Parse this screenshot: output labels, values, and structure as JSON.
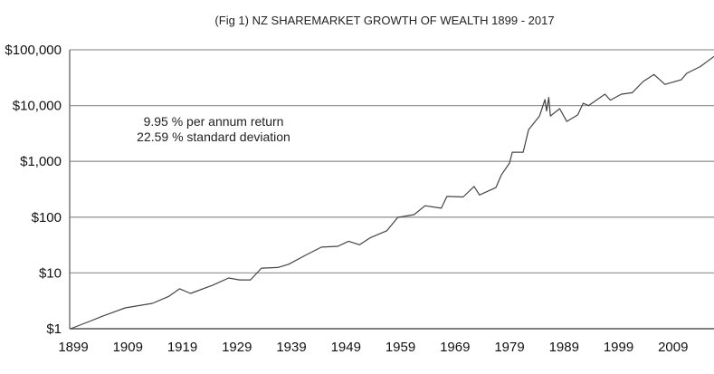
{
  "chart_data": {
    "type": "line",
    "title": "(Fig 1) NZ SHAREMARKET GROWTH OF WEALTH 1899 - 2017",
    "xlabel": "",
    "ylabel": "",
    "y_scale": "log",
    "ylim": [
      1,
      100000
    ],
    "xlim": [
      1899,
      2017
    ],
    "grid": "horizontal",
    "line_color": "#444444",
    "grid_color": "#999999",
    "y_ticks": [
      {
        "value": 100000,
        "label": "$100,000"
      },
      {
        "value": 10000,
        "label": "$10,000"
      },
      {
        "value": 1000,
        "label": "$1,000"
      },
      {
        "value": 100,
        "label": "$100"
      },
      {
        "value": 10,
        "label": "$10"
      },
      {
        "value": 1,
        "label": "$1"
      }
    ],
    "x_ticks": [
      {
        "value": 1899,
        "label": "1899"
      },
      {
        "value": 1909,
        "label": "1909"
      },
      {
        "value": 1919,
        "label": "1919"
      },
      {
        "value": 1929,
        "label": "1929"
      },
      {
        "value": 1939,
        "label": "1939"
      },
      {
        "value": 1949,
        "label": "1949"
      },
      {
        "value": 1959,
        "label": "1959"
      },
      {
        "value": 1969,
        "label": "1969"
      },
      {
        "value": 1979,
        "label": "1979"
      },
      {
        "value": 1989,
        "label": "1989"
      },
      {
        "value": 1999,
        "label": "1999"
      },
      {
        "value": 2009,
        "label": "2009"
      }
    ],
    "annotations": [
      "9.95 % per annum return",
      "22.59 % standard deviation"
    ],
    "series": [
      {
        "x": [
          1899,
          1902,
          1905,
          1909,
          1914,
          1917,
          1919,
          1921,
          1925,
          1928,
          1930,
          1932,
          1934,
          1937,
          1939,
          1942,
          1945,
          1948,
          1950,
          1952,
          1954,
          1957,
          1959,
          1962,
          1964,
          1967,
          1968,
          1971,
          1973,
          1974,
          1977,
          1978,
          1979.5,
          1980,
          1982,
          1983,
          1985,
          1986,
          1986.3,
          1986.7,
          1987,
          1988.7,
          1990,
          1992,
          1993,
          1994,
          1997,
          1998,
          2000,
          2002,
          2004,
          2006,
          2008,
          2011,
          2012,
          2014.5,
          2017
        ],
        "values": [
          1,
          1.3,
          1.7,
          2.36,
          2.85,
          3.8,
          5.2,
          4.3,
          6.0,
          8.1,
          7.5,
          7.5,
          12.2,
          12.5,
          14.3,
          20.6,
          29,
          30,
          37,
          32,
          43,
          57,
          99,
          111,
          160,
          145,
          235,
          230,
          355,
          250,
          340,
          570,
          930,
          1460,
          1460,
          3700,
          6500,
          12800,
          8000,
          14000,
          6500,
          8800,
          5200,
          6800,
          11000,
          10000,
          16000,
          12500,
          16000,
          17000,
          27000,
          36000,
          24000,
          29000,
          38000,
          50000,
          76000
        ]
      }
    ]
  }
}
